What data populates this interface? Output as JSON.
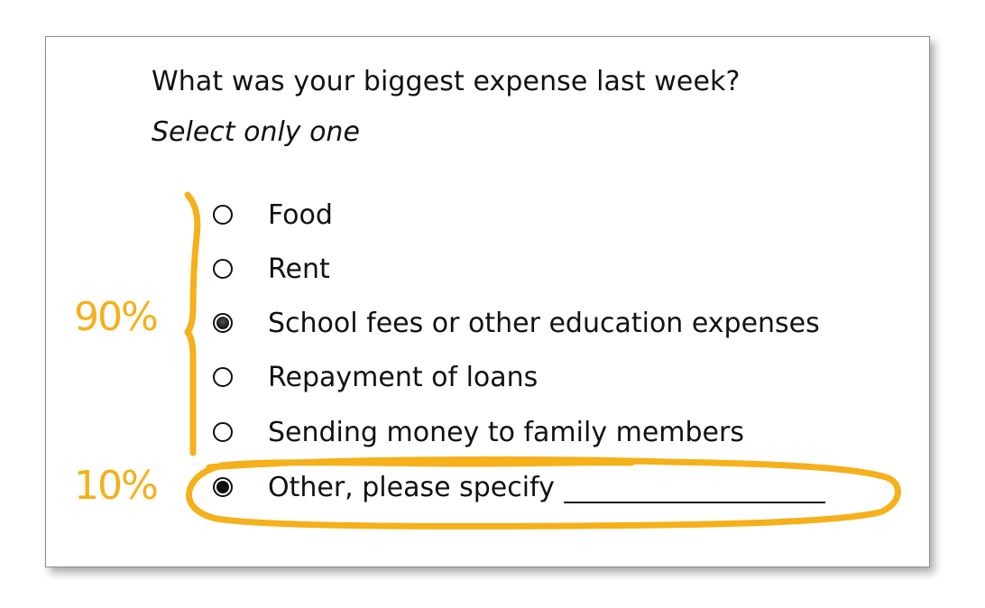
{
  "question": {
    "text": "What was your biggest expense last week?",
    "instruction": "Select only one"
  },
  "options": [
    {
      "label": "Food",
      "selected": false
    },
    {
      "label": "Rent",
      "selected": false
    },
    {
      "label": "School fees or other education expenses",
      "selected": true
    },
    {
      "label": "Repayment of loans",
      "selected": false
    },
    {
      "label": "Sending money to family members",
      "selected": false
    },
    {
      "label": "Other, please specify",
      "selected": true
    }
  ],
  "annotations": {
    "group_percent": "90%",
    "other_percent": "10%",
    "color": "#f5b01a"
  }
}
